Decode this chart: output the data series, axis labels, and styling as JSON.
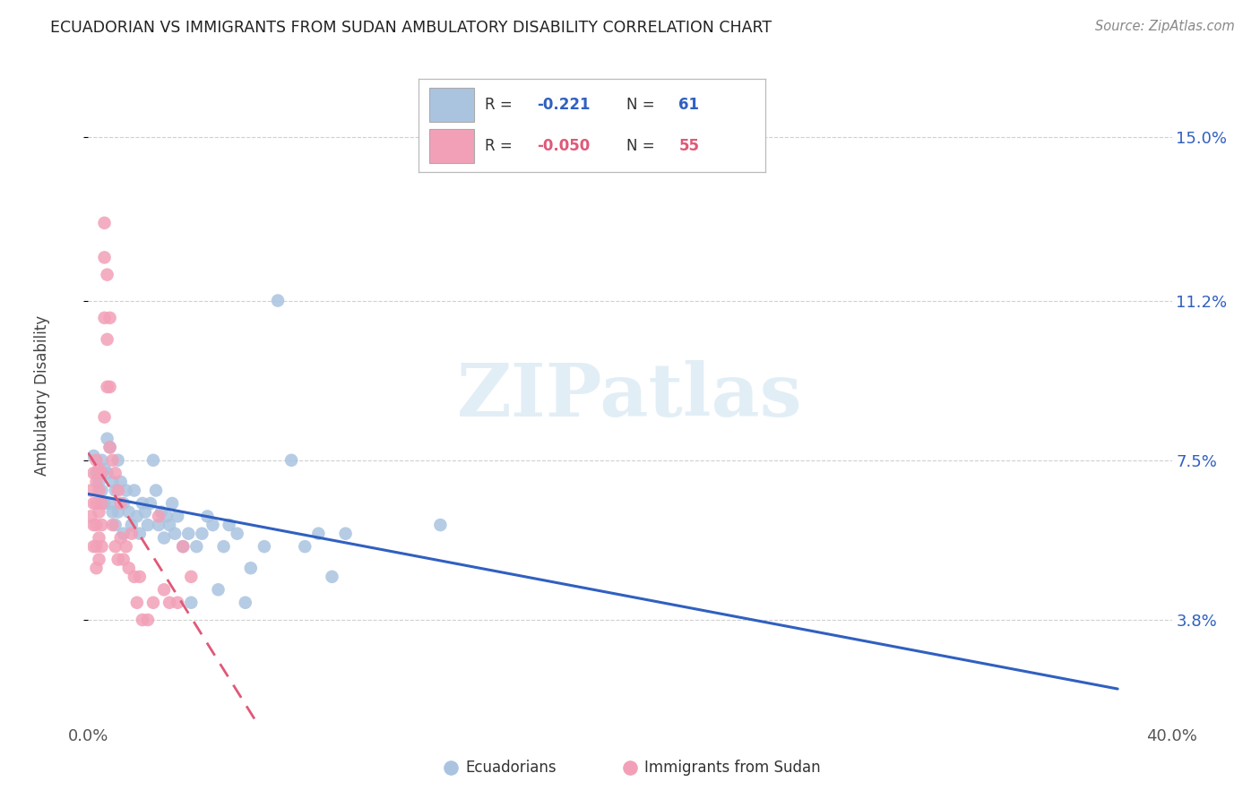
{
  "title": "ECUADORIAN VS IMMIGRANTS FROM SUDAN AMBULATORY DISABILITY CORRELATION CHART",
  "source": "Source: ZipAtlas.com",
  "ylabel": "Ambulatory Disability",
  "xlim": [
    0.0,
    0.4
  ],
  "ylim": [
    0.015,
    0.165
  ],
  "xticks": [
    0.0,
    0.1,
    0.2,
    0.3,
    0.4
  ],
  "xticklabels": [
    "0.0%",
    "",
    "",
    "",
    "40.0%"
  ],
  "ytick_positions": [
    0.038,
    0.075,
    0.112,
    0.15
  ],
  "ytick_labels": [
    "3.8%",
    "7.5%",
    "11.2%",
    "15.0%"
  ],
  "background_color": "#ffffff",
  "grid_color": "#d0d0d0",
  "blue_r": "-0.221",
  "blue_n": "61",
  "pink_r": "-0.050",
  "pink_n": "55",
  "blue_color": "#aac4e0",
  "pink_color": "#f2a0b8",
  "blue_line_color": "#3060c0",
  "pink_line_color": "#e05878",
  "ecuadorians_x": [
    0.002,
    0.003,
    0.004,
    0.005,
    0.005,
    0.006,
    0.006,
    0.007,
    0.007,
    0.008,
    0.008,
    0.009,
    0.009,
    0.01,
    0.01,
    0.011,
    0.011,
    0.012,
    0.013,
    0.013,
    0.014,
    0.015,
    0.016,
    0.017,
    0.018,
    0.019,
    0.02,
    0.021,
    0.022,
    0.023,
    0.024,
    0.025,
    0.026,
    0.027,
    0.028,
    0.029,
    0.03,
    0.031,
    0.032,
    0.033,
    0.035,
    0.037,
    0.038,
    0.04,
    0.042,
    0.044,
    0.046,
    0.048,
    0.05,
    0.052,
    0.055,
    0.058,
    0.06,
    0.065,
    0.07,
    0.075,
    0.08,
    0.085,
    0.09,
    0.095,
    0.13
  ],
  "ecuadorians_y": [
    0.076,
    0.072,
    0.07,
    0.075,
    0.068,
    0.073,
    0.065,
    0.08,
    0.072,
    0.078,
    0.065,
    0.07,
    0.063,
    0.068,
    0.06,
    0.075,
    0.063,
    0.07,
    0.065,
    0.058,
    0.068,
    0.063,
    0.06,
    0.068,
    0.062,
    0.058,
    0.065,
    0.063,
    0.06,
    0.065,
    0.075,
    0.068,
    0.06,
    0.063,
    0.057,
    0.062,
    0.06,
    0.065,
    0.058,
    0.062,
    0.055,
    0.058,
    0.042,
    0.055,
    0.058,
    0.062,
    0.06,
    0.045,
    0.055,
    0.06,
    0.058,
    0.042,
    0.05,
    0.055,
    0.112,
    0.075,
    0.055,
    0.058,
    0.048,
    0.058,
    0.06
  ],
  "sudan_x": [
    0.001,
    0.001,
    0.002,
    0.002,
    0.002,
    0.002,
    0.003,
    0.003,
    0.003,
    0.003,
    0.003,
    0.003,
    0.004,
    0.004,
    0.004,
    0.004,
    0.004,
    0.005,
    0.005,
    0.005,
    0.005,
    0.006,
    0.006,
    0.006,
    0.006,
    0.007,
    0.007,
    0.007,
    0.008,
    0.008,
    0.008,
    0.009,
    0.009,
    0.01,
    0.01,
    0.011,
    0.011,
    0.012,
    0.012,
    0.013,
    0.014,
    0.015,
    0.016,
    0.017,
    0.018,
    0.019,
    0.02,
    0.022,
    0.024,
    0.026,
    0.028,
    0.03,
    0.033,
    0.035,
    0.038
  ],
  "sudan_y": [
    0.068,
    0.062,
    0.072,
    0.065,
    0.06,
    0.055,
    0.075,
    0.07,
    0.065,
    0.06,
    0.055,
    0.05,
    0.073,
    0.068,
    0.063,
    0.057,
    0.052,
    0.072,
    0.065,
    0.06,
    0.055,
    0.13,
    0.122,
    0.108,
    0.085,
    0.118,
    0.103,
    0.092,
    0.108,
    0.092,
    0.078,
    0.075,
    0.06,
    0.072,
    0.055,
    0.068,
    0.052,
    0.065,
    0.057,
    0.052,
    0.055,
    0.05,
    0.058,
    0.048,
    0.042,
    0.048,
    0.038,
    0.038,
    0.042,
    0.062,
    0.045,
    0.042,
    0.042,
    0.055,
    0.048
  ]
}
